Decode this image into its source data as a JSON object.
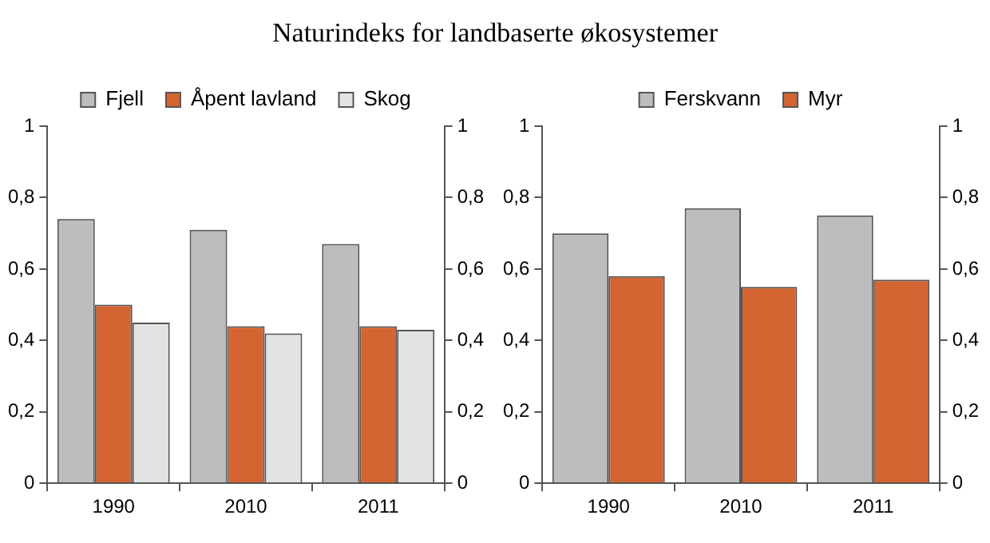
{
  "chart_data": [
    {
      "type": "bar",
      "title": "Naturindeks for landbaserte økosystemer",
      "categories": [
        "1990",
        "2010",
        "2011"
      ],
      "series": [
        {
          "name": "Fjell",
          "color": "#bdbdbd",
          "values": [
            0.74,
            0.71,
            0.67
          ]
        },
        {
          "name": "Åpent lavland",
          "color": "#d46431",
          "values": [
            0.5,
            0.44,
            0.44
          ]
        },
        {
          "name": "Skog",
          "color": "#e3e3e3",
          "values": [
            0.45,
            0.42,
            0.43
          ]
        }
      ],
      "ylim": [
        0,
        1
      ],
      "yticks": [
        {
          "value": 0,
          "label": "0"
        },
        {
          "value": 0.2,
          "label": "0,2"
        },
        {
          "value": 0.4,
          "label": "0,4"
        },
        {
          "value": 0.6,
          "label": "0,6"
        },
        {
          "value": 0.8,
          "label": "0,8"
        },
        {
          "value": 1,
          "label": "1"
        }
      ],
      "y2lim": [
        0,
        1
      ],
      "y2ticks": [
        {
          "value": 0,
          "label": "0"
        },
        {
          "value": 0.2,
          "label": "0,2"
        },
        {
          "value": 0.4,
          "label": "0,4"
        },
        {
          "value": 0.6,
          "label": "0,6"
        },
        {
          "value": 0.8,
          "label": "0,8"
        },
        {
          "value": 1,
          "label": "1"
        }
      ],
      "grid": false,
      "legend": "top"
    },
    {
      "type": "bar",
      "categories": [
        "1990",
        "2010",
        "2011"
      ],
      "series": [
        {
          "name": "Ferskvann",
          "color": "#bdbdbd",
          "values": [
            0.7,
            0.77,
            0.75
          ]
        },
        {
          "name": "Myr",
          "color": "#d46431",
          "values": [
            0.58,
            0.55,
            0.57
          ]
        }
      ],
      "ylim": [
        0,
        1
      ],
      "yticks": [
        {
          "value": 0,
          "label": "0"
        },
        {
          "value": 0.2,
          "label": "0,2"
        },
        {
          "value": 0.4,
          "label": "0,4"
        },
        {
          "value": 0.6,
          "label": "0,6"
        },
        {
          "value": 0.8,
          "label": "0,8"
        },
        {
          "value": 1,
          "label": "1"
        }
      ],
      "y2lim": [
        0,
        1
      ],
      "y2ticks": [
        {
          "value": 0,
          "label": "0"
        },
        {
          "value": 0.2,
          "label": "0,2"
        },
        {
          "value": 0.4,
          "label": "0,4"
        },
        {
          "value": 0.6,
          "label": "0,6"
        },
        {
          "value": 0.8,
          "label": "0,8"
        },
        {
          "value": 1,
          "label": "1"
        }
      ],
      "grid": false,
      "legend": "top"
    }
  ]
}
